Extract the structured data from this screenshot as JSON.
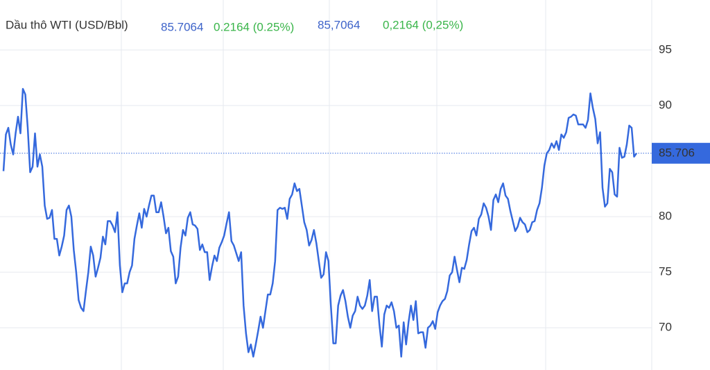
{
  "header": {
    "name": "Dầu thô WTI (USD/Bbl)",
    "price": "85.7064",
    "change": "0.2164 (0.25%)",
    "price_local": "85,7064",
    "change_local": "0,2164 (0,25%)"
  },
  "chart_data": {
    "type": "line",
    "series": [
      {
        "name": "Dầu thô WTI (USD/Bbl)",
        "color": "#3569dd",
        "last_label": "85.706",
        "values": [
          84.1,
          87.4,
          88.0,
          86.5,
          85.6,
          87.5,
          89.0,
          87.5,
          91.5,
          91.0,
          88.0,
          84.0,
          84.5,
          87.5,
          84.5,
          85.6,
          84.5,
          81.0,
          79.8,
          79.9,
          80.6,
          78.0,
          78.0,
          76.5,
          77.3,
          78.3,
          80.6,
          81.0,
          80.0,
          77.0,
          75.0,
          72.5,
          71.8,
          71.5,
          73.3,
          75.0,
          77.3,
          76.5,
          74.6,
          75.4,
          76.3,
          78.2,
          77.5,
          79.6,
          79.6,
          79.2,
          78.6,
          80.4,
          75.6,
          73.2,
          74.0,
          74.0,
          75.0,
          75.6,
          78.0,
          79.2,
          80.3,
          79.0,
          80.7,
          80.0,
          81.0,
          81.9,
          81.9,
          80.4,
          80.4,
          81.3,
          80.0,
          78.5,
          79.0,
          76.9,
          76.4,
          74.0,
          74.6,
          77.2,
          78.8,
          78.3,
          79.9,
          80.4,
          79.3,
          79.2,
          78.9,
          77.0,
          77.5,
          76.8,
          76.8,
          74.3,
          75.5,
          76.5,
          76.0,
          77.2,
          77.7,
          78.3,
          79.4,
          80.4,
          77.8,
          77.4,
          76.7,
          76.0,
          76.8,
          72.0,
          69.5,
          67.8,
          68.5,
          67.4,
          68.5,
          69.7,
          71.0,
          70.0,
          71.5,
          73.0,
          73.0,
          74.0,
          76.0,
          80.6,
          80.8,
          80.7,
          80.8,
          79.8,
          81.6,
          82.0,
          83.0,
          82.3,
          82.5,
          81.0,
          79.5,
          78.8,
          77.4,
          77.9,
          78.8,
          77.6,
          76.0,
          74.5,
          74.8,
          76.8,
          76.0,
          72.0,
          68.6,
          68.6,
          72.0,
          72.9,
          73.4,
          72.4,
          71.0,
          70.0,
          71.1,
          71.5,
          72.8,
          72.0,
          71.7,
          72.0,
          72.9,
          74.3,
          71.5,
          72.8,
          72.8,
          70.3,
          68.3,
          71.2,
          72.0,
          71.8,
          72.3,
          71.5,
          70.0,
          70.2,
          67.4,
          70.5,
          68.5,
          70.5,
          72.0,
          70.7,
          72.4,
          69.5,
          69.6,
          69.6,
          68.2,
          70.0,
          70.2,
          70.6,
          69.9,
          71.4,
          72.0,
          72.4,
          72.6,
          73.3,
          74.7,
          75.0,
          76.4,
          75.2,
          74.1,
          75.4,
          75.3,
          76.1,
          77.5,
          78.7,
          79.0,
          78.3,
          79.8,
          80.2,
          81.2,
          80.8,
          80.0,
          78.8,
          81.5,
          82.0,
          81.3,
          82.5,
          83.0,
          81.9,
          81.6,
          80.5,
          79.6,
          78.7,
          79.1,
          79.9,
          79.5,
          79.3,
          78.6,
          78.8,
          79.5,
          79.6,
          80.6,
          81.2,
          82.6,
          84.6,
          85.7,
          86.0,
          86.6,
          86.2,
          86.8,
          86.0,
          87.4,
          87.1,
          87.6,
          88.9,
          89.0,
          89.2,
          89.1,
          88.3,
          88.3,
          88.3,
          88.0,
          88.7,
          91.1,
          89.8,
          88.8,
          86.6,
          87.6,
          82.6,
          80.9,
          81.2,
          84.3,
          84.0,
          82.0,
          81.8,
          86.2,
          85.3,
          85.4,
          86.5,
          88.2,
          88.0,
          85.4,
          85.7064
        ]
      }
    ],
    "ylim": [
      66.2,
      99.5
    ],
    "yticks": [
      70,
      75,
      80,
      90,
      95
    ],
    "grid": true
  }
}
